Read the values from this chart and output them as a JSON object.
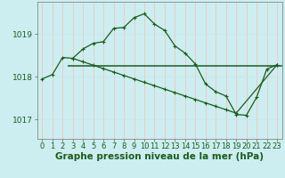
{
  "xlabel": "Graphe pression niveau de la mer (hPa)",
  "background_color": "#cceef0",
  "grid_color_h": "#c8e8ea",
  "grid_color_v": "#f0c8c8",
  "line_color": "#1a5c1a",
  "x_ticks": [
    0,
    1,
    2,
    3,
    4,
    5,
    6,
    7,
    8,
    9,
    10,
    11,
    12,
    13,
    14,
    15,
    16,
    17,
    18,
    19,
    20,
    21,
    22,
    23
  ],
  "y_ticks": [
    1017,
    1018,
    1019
  ],
  "ylim": [
    1016.55,
    1019.75
  ],
  "xlim": [
    -0.5,
    23.5
  ],
  "main_line_x": [
    0,
    1,
    2,
    3,
    4,
    5,
    6,
    7,
    8,
    9,
    10,
    11,
    12,
    13,
    14,
    15,
    16,
    17,
    18,
    19,
    20,
    21,
    22,
    23
  ],
  "main_line_y": [
    1017.95,
    1018.05,
    1018.45,
    1018.43,
    1018.65,
    1018.78,
    1018.82,
    1019.13,
    1019.15,
    1019.38,
    1019.47,
    1019.23,
    1019.08,
    1018.72,
    1018.55,
    1018.3,
    1017.83,
    1017.65,
    1017.55,
    1017.12,
    1017.1,
    1017.52,
    1018.18,
    1018.28
  ],
  "diag_line_x": [
    3,
    4,
    5,
    6,
    7,
    8,
    9,
    10,
    11,
    12,
    13,
    14,
    15,
    16,
    17,
    18,
    19,
    23
  ],
  "diag_line_y": [
    1018.43,
    1018.35,
    1018.27,
    1018.19,
    1018.11,
    1018.03,
    1017.95,
    1017.87,
    1017.79,
    1017.71,
    1017.63,
    1017.55,
    1017.47,
    1017.39,
    1017.31,
    1017.23,
    1017.15,
    1018.28
  ],
  "hline_y": 1018.25,
  "hline_x_start": 2.5,
  "hline_x_end": 23.5,
  "xlabel_fontsize": 7.5,
  "tick_fontsize": 6.0,
  "spine_color": "#888888"
}
